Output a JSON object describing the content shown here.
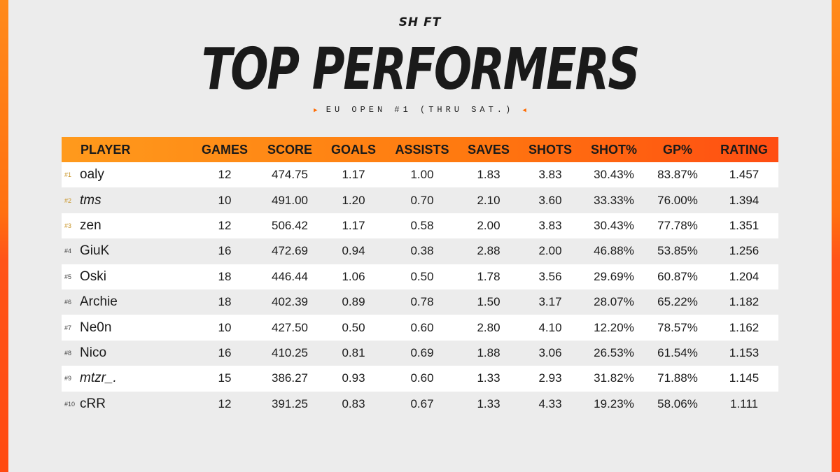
{
  "brand": "SH FT",
  "title": "TOP PERFORMERS",
  "subtitle": "EU OPEN #1 (THRU SAT.)",
  "columns": [
    "PLAYER",
    "GAMES",
    "SCORE",
    "GOALS",
    "ASSISTS",
    "SAVES",
    "SHOTS",
    "SHOT%",
    "GP%",
    "RATING"
  ],
  "rows": [
    {
      "rank": "#1",
      "player": "oaly",
      "games": "12",
      "score": "474.75",
      "goals": "1.17",
      "assists": "1.00",
      "saves": "1.83",
      "shots": "3.83",
      "shot_pct": "30.43%",
      "gp_pct": "83.87%",
      "rating": "1.457"
    },
    {
      "rank": "#2",
      "player": "tms",
      "games": "10",
      "score": "491.00",
      "goals": "1.20",
      "assists": "0.70",
      "saves": "2.10",
      "shots": "3.60",
      "shot_pct": "33.33%",
      "gp_pct": "76.00%",
      "rating": "1.394"
    },
    {
      "rank": "#3",
      "player": "zen",
      "games": "12",
      "score": "506.42",
      "goals": "1.17",
      "assists": "0.58",
      "saves": "2.00",
      "shots": "3.83",
      "shot_pct": "30.43%",
      "gp_pct": "77.78%",
      "rating": "1.351"
    },
    {
      "rank": "#4",
      "player": "GiuK",
      "games": "16",
      "score": "472.69",
      "goals": "0.94",
      "assists": "0.38",
      "saves": "2.88",
      "shots": "2.00",
      "shot_pct": "46.88%",
      "gp_pct": "53.85%",
      "rating": "1.256"
    },
    {
      "rank": "#5",
      "player": "Oski",
      "games": "18",
      "score": "446.44",
      "goals": "1.06",
      "assists": "0.50",
      "saves": "1.78",
      "shots": "3.56",
      "shot_pct": "29.69%",
      "gp_pct": "60.87%",
      "rating": "1.204"
    },
    {
      "rank": "#6",
      "player": "Archie",
      "games": "18",
      "score": "402.39",
      "goals": "0.89",
      "assists": "0.78",
      "saves": "1.50",
      "shots": "3.17",
      "shot_pct": "28.07%",
      "gp_pct": "65.22%",
      "rating": "1.182"
    },
    {
      "rank": "#7",
      "player": "Ne0n",
      "games": "10",
      "score": "427.50",
      "goals": "0.50",
      "assists": "0.60",
      "saves": "2.80",
      "shots": "4.10",
      "shot_pct": "12.20%",
      "gp_pct": "78.57%",
      "rating": "1.162"
    },
    {
      "rank": "#8",
      "player": "Nico",
      "games": "16",
      "score": "410.25",
      "goals": "0.81",
      "assists": "0.69",
      "saves": "1.88",
      "shots": "3.06",
      "shot_pct": "26.53%",
      "gp_pct": "61.54%",
      "rating": "1.153"
    },
    {
      "rank": "#9",
      "player": "mtzr_.",
      "games": "15",
      "score": "386.27",
      "goals": "0.93",
      "assists": "0.60",
      "saves": "1.33",
      "shots": "2.93",
      "shot_pct": "31.82%",
      "gp_pct": "71.88%",
      "rating": "1.145"
    },
    {
      "rank": "#10",
      "player": "cRR",
      "games": "12",
      "score": "391.25",
      "goals": "0.83",
      "assists": "0.67",
      "saves": "1.33",
      "shots": "4.33",
      "shot_pct": "19.23%",
      "gp_pct": "58.06%",
      "rating": "1.111"
    }
  ],
  "colors": {
    "accent_orange": "#ff7a10",
    "accent_red": "#ff4d12",
    "gold": "#c9962a",
    "background": "#ececec"
  }
}
